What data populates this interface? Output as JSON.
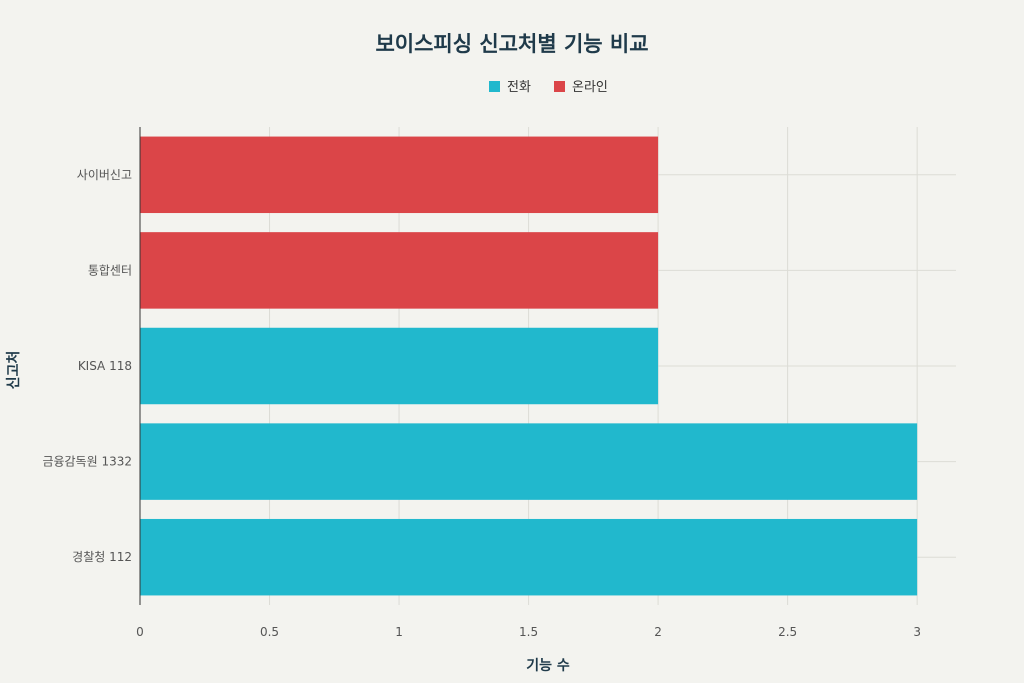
{
  "chart_data": {
    "type": "bar",
    "orientation": "horizontal",
    "title": "보이스피싱 신고처별 기능 비교",
    "xlabel": "기능 수",
    "ylabel": "신고처",
    "xlim": [
      0,
      3.15
    ],
    "xticks": [
      "0",
      "0.5",
      "1",
      "1.5",
      "2",
      "2.5",
      "3"
    ],
    "xtick_values": [
      0,
      0.5,
      1,
      1.5,
      2,
      2.5,
      3
    ],
    "grid": true,
    "legend_position": "top-center",
    "series": [
      {
        "name": "전화",
        "color": "#21b8cd"
      },
      {
        "name": "온라인",
        "color": "#db4548"
      }
    ],
    "bars": [
      {
        "category": "사이버신고",
        "value": 2,
        "series": "온라인"
      },
      {
        "category": "통합센터",
        "value": 2,
        "series": "온라인"
      },
      {
        "category": "KISA 118",
        "value": 2,
        "series": "전화"
      },
      {
        "category": "금융감독원 1332",
        "value": 3,
        "series": "전화"
      },
      {
        "category": "경찰청 112",
        "value": 3,
        "series": "전화"
      }
    ]
  }
}
